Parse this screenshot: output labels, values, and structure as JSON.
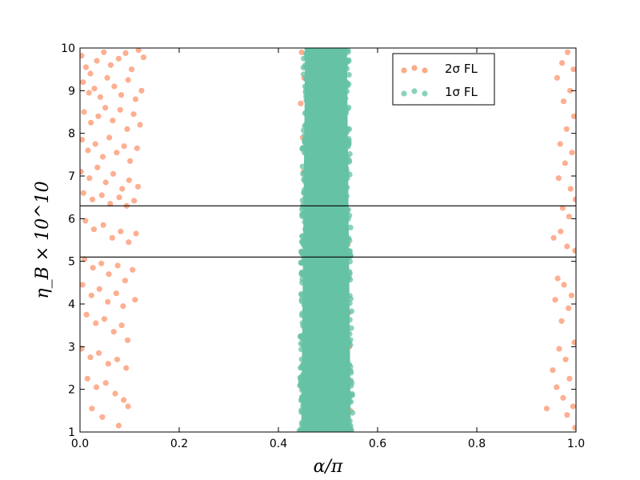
{
  "chart_data": {
    "type": "scatter",
    "xlabel": "α/π",
    "ylabel": "η_B × 10^10",
    "xlim": [
      0.0,
      1.0
    ],
    "ylim": [
      1,
      10
    ],
    "xticks": [
      "0.0",
      "0.2",
      "0.4",
      "0.6",
      "0.8",
      "1.0"
    ],
    "yticks": [
      "1",
      "2",
      "3",
      "4",
      "5",
      "6",
      "7",
      "8",
      "9",
      "10"
    ],
    "legend_placement": "top-right",
    "hlines": [
      5.1,
      6.3
    ],
    "series": [
      {
        "name": "2σ FL",
        "color": "#fc8d62",
        "points": [
          [
            0.003,
            9.82
          ],
          [
            0.012,
            9.55
          ],
          [
            0.021,
            9.4
          ],
          [
            0.034,
            9.7
          ],
          [
            0.048,
            9.9
          ],
          [
            0.062,
            9.6
          ],
          [
            0.078,
            9.75
          ],
          [
            0.092,
            9.88
          ],
          [
            0.104,
            9.5
          ],
          [
            0.118,
            9.95
          ],
          [
            0.128,
            9.78
          ],
          [
            0.006,
            9.2
          ],
          [
            0.018,
            8.95
          ],
          [
            0.029,
            9.05
          ],
          [
            0.041,
            8.85
          ],
          [
            0.055,
            9.3
          ],
          [
            0.069,
            9.1
          ],
          [
            0.083,
            8.9
          ],
          [
            0.097,
            9.25
          ],
          [
            0.112,
            8.8
          ],
          [
            0.124,
            9.0
          ],
          [
            0.008,
            8.5
          ],
          [
            0.022,
            8.25
          ],
          [
            0.037,
            8.4
          ],
          [
            0.051,
            8.6
          ],
          [
            0.066,
            8.3
          ],
          [
            0.081,
            8.55
          ],
          [
            0.095,
            8.1
          ],
          [
            0.108,
            8.45
          ],
          [
            0.121,
            8.2
          ],
          [
            0.004,
            7.85
          ],
          [
            0.016,
            7.6
          ],
          [
            0.031,
            7.75
          ],
          [
            0.046,
            7.45
          ],
          [
            0.059,
            7.9
          ],
          [
            0.074,
            7.55
          ],
          [
            0.089,
            7.7
          ],
          [
            0.101,
            7.35
          ],
          [
            0.115,
            7.65
          ],
          [
            0.002,
            7.1
          ],
          [
            0.019,
            6.95
          ],
          [
            0.035,
            7.2
          ],
          [
            0.052,
            6.85
          ],
          [
            0.067,
            7.05
          ],
          [
            0.085,
            6.7
          ],
          [
            0.099,
            6.9
          ],
          [
            0.117,
            6.75
          ],
          [
            0.007,
            6.6
          ],
          [
            0.025,
            6.45
          ],
          [
            0.044,
            6.55
          ],
          [
            0.061,
            6.35
          ],
          [
            0.079,
            6.5
          ],
          [
            0.094,
            6.3
          ],
          [
            0.109,
            6.42
          ],
          [
            0.011,
            5.95
          ],
          [
            0.028,
            5.75
          ],
          [
            0.047,
            5.85
          ],
          [
            0.065,
            5.55
          ],
          [
            0.082,
            5.7
          ],
          [
            0.098,
            5.45
          ],
          [
            0.113,
            5.65
          ],
          [
            0.009,
            5.05
          ],
          [
            0.026,
            4.85
          ],
          [
            0.043,
            4.95
          ],
          [
            0.058,
            4.7
          ],
          [
            0.076,
            4.9
          ],
          [
            0.091,
            4.55
          ],
          [
            0.106,
            4.8
          ],
          [
            0.005,
            4.45
          ],
          [
            0.023,
            4.2
          ],
          [
            0.039,
            4.35
          ],
          [
            0.056,
            4.05
          ],
          [
            0.073,
            4.25
          ],
          [
            0.087,
            3.95
          ],
          [
            0.111,
            4.1
          ],
          [
            0.013,
            3.75
          ],
          [
            0.032,
            3.55
          ],
          [
            0.049,
            3.65
          ],
          [
            0.068,
            3.35
          ],
          [
            0.084,
            3.5
          ],
          [
            0.096,
            3.15
          ],
          [
            0.003,
            2.95
          ],
          [
            0.021,
            2.75
          ],
          [
            0.038,
            2.85
          ],
          [
            0.057,
            2.6
          ],
          [
            0.075,
            2.7
          ],
          [
            0.093,
            2.5
          ],
          [
            0.015,
            2.25
          ],
          [
            0.033,
            2.05
          ],
          [
            0.052,
            2.15
          ],
          [
            0.071,
            1.9
          ],
          [
            0.088,
            1.75
          ],
          [
            0.024,
            1.55
          ],
          [
            0.045,
            1.35
          ],
          [
            0.078,
            1.15
          ],
          [
            0.097,
            1.6
          ],
          [
            0.447,
            9.9
          ],
          [
            0.452,
            9.3
          ],
          [
            0.445,
            8.7
          ],
          [
            0.449,
            7.9
          ],
          [
            0.451,
            7.1
          ],
          [
            0.454,
            6.4
          ],
          [
            0.456,
            5.6
          ],
          [
            0.458,
            4.9
          ],
          [
            0.459,
            4.1
          ],
          [
            0.461,
            3.3
          ],
          [
            0.462,
            2.5
          ],
          [
            0.463,
            1.8
          ],
          [
            0.464,
            1.2
          ],
          [
            0.534,
            9.85
          ],
          [
            0.536,
            9.2
          ],
          [
            0.535,
            8.6
          ],
          [
            0.537,
            7.8
          ],
          [
            0.538,
            7.0
          ],
          [
            0.539,
            6.2
          ],
          [
            0.54,
            5.4
          ],
          [
            0.541,
            4.6
          ],
          [
            0.542,
            3.8
          ],
          [
            0.543,
            3.0
          ],
          [
            0.544,
            2.2
          ],
          [
            0.545,
            1.5
          ],
          [
            0.546,
            1.05
          ],
          [
            0.983,
            9.9
          ],
          [
            0.972,
            9.65
          ],
          [
            0.995,
            9.5
          ],
          [
            0.962,
            9.3
          ],
          [
            0.988,
            9.0
          ],
          [
            0.975,
            8.75
          ],
          [
            0.996,
            8.4
          ],
          [
            0.981,
            8.1
          ],
          [
            0.968,
            7.75
          ],
          [
            0.992,
            7.55
          ],
          [
            0.978,
            7.3
          ],
          [
            0.965,
            6.95
          ],
          [
            0.989,
            6.7
          ],
          [
            0.999,
            6.45
          ],
          [
            0.973,
            6.25
          ],
          [
            0.986,
            6.05
          ],
          [
            0.955,
            5.55
          ],
          [
            0.969,
            5.7
          ],
          [
            0.982,
            5.35
          ],
          [
            0.998,
            5.25
          ],
          [
            0.963,
            4.6
          ],
          [
            0.976,
            4.45
          ],
          [
            0.991,
            4.2
          ],
          [
            0.958,
            4.1
          ],
          [
            0.985,
            3.9
          ],
          [
            0.971,
            3.6
          ],
          [
            0.997,
            3.1
          ],
          [
            0.966,
            2.95
          ],
          [
            0.979,
            2.7
          ],
          [
            0.953,
            2.45
          ],
          [
            0.987,
            2.25
          ],
          [
            0.961,
            2.05
          ],
          [
            0.974,
            1.8
          ],
          [
            0.994,
            1.6
          ],
          [
            0.941,
            1.55
          ],
          [
            0.982,
            1.4
          ],
          [
            0.998,
            1.1
          ]
        ]
      },
      {
        "name": "1σ FL",
        "color": "#66c2a5",
        "band": {
          "x_center": 0.496,
          "x_halfwidth_top": 0.042,
          "x_halfwidth_bottom": 0.05,
          "y_from": 1,
          "y_to": 10
        }
      }
    ]
  }
}
